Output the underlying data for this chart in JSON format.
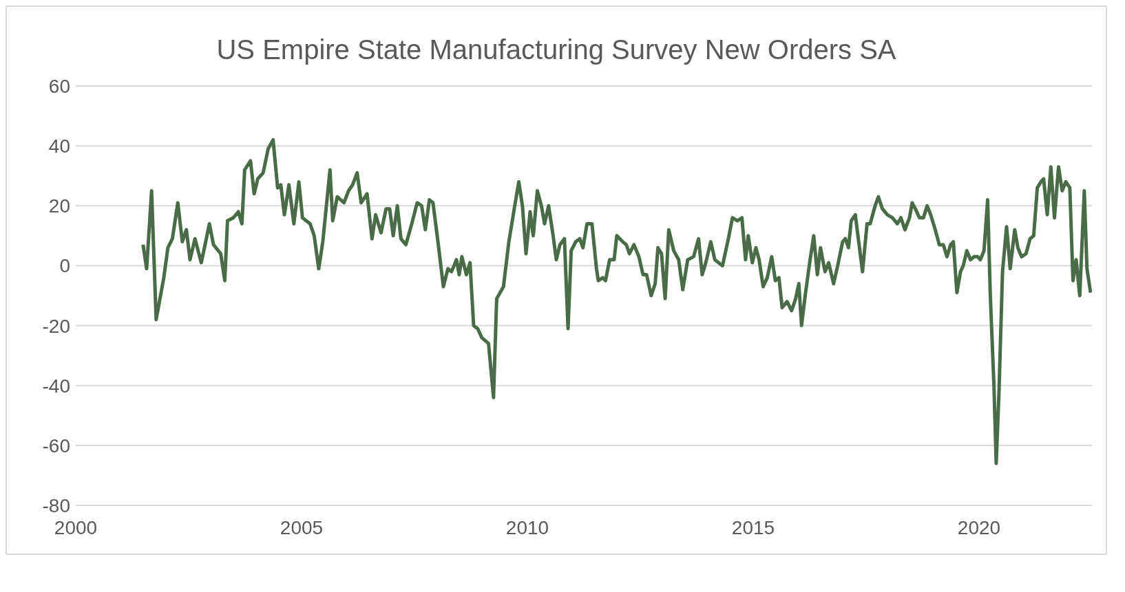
{
  "chart_data": {
    "type": "line",
    "title": "US Empire State Manufacturing Survey New Orders SA",
    "x": [
      2001.49,
      2001.57,
      2001.68,
      2001.78,
      2001.95,
      2002.04,
      2002.14,
      2002.26,
      2002.36,
      2002.45,
      2002.53,
      2002.64,
      2002.78,
      2002.96,
      2003.05,
      2003.21,
      2003.3,
      2003.36,
      2003.49,
      2003.6,
      2003.68,
      2003.74,
      2003.87,
      2003.95,
      2004.03,
      2004.15,
      2004.26,
      2004.37,
      2004.47,
      2004.54,
      2004.62,
      2004.72,
      2004.83,
      2004.94,
      2005.02,
      2005.19,
      2005.28,
      2005.38,
      2005.47,
      2005.53,
      2005.63,
      2005.69,
      2005.79,
      2005.94,
      2006.04,
      2006.13,
      2006.23,
      2006.32,
      2006.45,
      2006.56,
      2006.64,
      2006.76,
      2006.87,
      2006.95,
      2007.03,
      2007.12,
      2007.2,
      2007.31,
      2007.44,
      2007.56,
      2007.66,
      2007.74,
      2007.83,
      2007.91,
      2008.02,
      2008.14,
      2008.24,
      2008.32,
      2008.43,
      2008.49,
      2008.55,
      2008.65,
      2008.73,
      2008.81,
      2008.9,
      2008.99,
      2009.14,
      2009.25,
      2009.32,
      2009.47,
      2009.59,
      2009.72,
      2009.81,
      2009.89,
      2009.97,
      2010.06,
      2010.13,
      2010.22,
      2010.31,
      2010.38,
      2010.47,
      2010.57,
      2010.64,
      2010.72,
      2010.82,
      2010.9,
      2010.97,
      2011.07,
      2011.16,
      2011.23,
      2011.32,
      2011.43,
      2011.53,
      2011.57,
      2011.67,
      2011.73,
      2011.82,
      2011.92,
      2011.98,
      2012.11,
      2012.19,
      2012.26,
      2012.36,
      2012.47,
      2012.56,
      2012.64,
      2012.74,
      2012.83,
      2012.89,
      2012.97,
      2013.05,
      2013.13,
      2013.24,
      2013.35,
      2013.44,
      2013.55,
      2013.68,
      2013.79,
      2013.87,
      2013.95,
      2014.06,
      2014.15,
      2014.32,
      2014.45,
      2014.54,
      2014.65,
      2014.75,
      2014.83,
      2014.89,
      2014.98,
      2015.06,
      2015.13,
      2015.22,
      2015.31,
      2015.41,
      2015.49,
      2015.57,
      2015.64,
      2015.75,
      2015.85,
      2015.94,
      2016.01,
      2016.07,
      2016.15,
      2016.26,
      2016.34,
      2016.42,
      2016.49,
      2016.59,
      2016.67,
      2016.78,
      2016.87,
      2016.98,
      2017.04,
      2017.11,
      2017.17,
      2017.26,
      2017.42,
      2017.52,
      2017.59,
      2017.7,
      2017.77,
      2017.86,
      2017.97,
      2018.08,
      2018.19,
      2018.27,
      2018.36,
      2018.46,
      2018.52,
      2018.59,
      2018.68,
      2018.77,
      2018.85,
      2018.93,
      2019.03,
      2019.12,
      2019.21,
      2019.29,
      2019.37,
      2019.43,
      2019.51,
      2019.59,
      2019.65,
      2019.73,
      2019.81,
      2019.89,
      2019.97,
      2020.03,
      2020.11,
      2020.19,
      2020.25,
      2020.33,
      2020.38,
      2020.44,
      2020.52,
      2020.61,
      2020.69,
      2020.79,
      2020.86,
      2020.94,
      2021.04,
      2021.13,
      2021.21,
      2021.29,
      2021.37,
      2021.43,
      2021.51,
      2021.59,
      2021.67,
      2021.76,
      2021.84,
      2021.92,
      2022.01,
      2022.08,
      2022.15,
      2022.23,
      2022.33,
      2022.39,
      2022.47
    ],
    "series": [
      {
        "color": "#4a6b47",
        "values": [
          7,
          -1,
          25,
          -18,
          -4,
          6,
          9,
          21,
          8,
          12,
          2,
          9,
          1,
          14,
          7,
          4,
          -5,
          15,
          16,
          18,
          14,
          32,
          35,
          24,
          29,
          31,
          39,
          42,
          26,
          27,
          17,
          27,
          14,
          28,
          16,
          14,
          10,
          -1,
          8,
          17,
          32,
          15,
          23,
          21,
          25,
          27,
          31,
          21,
          24,
          9,
          17,
          11,
          19,
          19,
          10,
          20,
          9,
          7,
          14,
          21,
          20,
          12,
          22,
          21,
          8,
          -7,
          -1,
          -2,
          2,
          -3,
          3,
          -3,
          1,
          -20,
          -21,
          -24,
          -26,
          -44,
          -11,
          -7,
          8,
          20,
          28,
          20,
          4,
          18,
          10,
          25,
          20,
          14,
          20,
          10,
          2,
          7,
          9,
          -21,
          5,
          8,
          9,
          6,
          14,
          14,
          -1,
          -5,
          -4,
          -5,
          2,
          2,
          10,
          8,
          7,
          4,
          7,
          3,
          -3,
          -3,
          -10,
          -6,
          6,
          4,
          -11,
          12,
          5,
          2,
          -8,
          2,
          3,
          9,
          -3,
          1,
          8,
          2,
          0,
          9,
          16,
          15,
          16,
          2,
          10,
          1,
          6,
          2,
          -7,
          -4,
          3,
          -5,
          -4,
          -14,
          -12,
          -15,
          -11,
          -6,
          -20,
          -10,
          2,
          10,
          -3,
          6,
          -2,
          1,
          -6,
          0,
          8,
          9,
          6,
          15,
          17,
          -2,
          14,
          14,
          20,
          23,
          19,
          17,
          16,
          14,
          16,
          12,
          16,
          21,
          19,
          16,
          16,
          20,
          17,
          12,
          7,
          7,
          3,
          7,
          8,
          -9,
          -2,
          0,
          5,
          2,
          3,
          3,
          2,
          5,
          22,
          -10,
          -40,
          -66,
          -43,
          -2,
          13,
          -1,
          12,
          6,
          3,
          4,
          9,
          10,
          26,
          28,
          29,
          17,
          33,
          16,
          33,
          25,
          28,
          26,
          -5,
          2,
          -10,
          25,
          -1,
          -9
        ]
      }
    ],
    "xlim": [
      2000,
      2022.5
    ],
    "xticks": [
      2000,
      2005,
      2010,
      2015,
      2020
    ],
    "ylim": [
      -80,
      60
    ],
    "yticks": [
      -80,
      -60,
      -40,
      -20,
      0,
      20,
      40,
      60
    ],
    "grid": "y",
    "marker": "none",
    "line_style": "solid"
  }
}
